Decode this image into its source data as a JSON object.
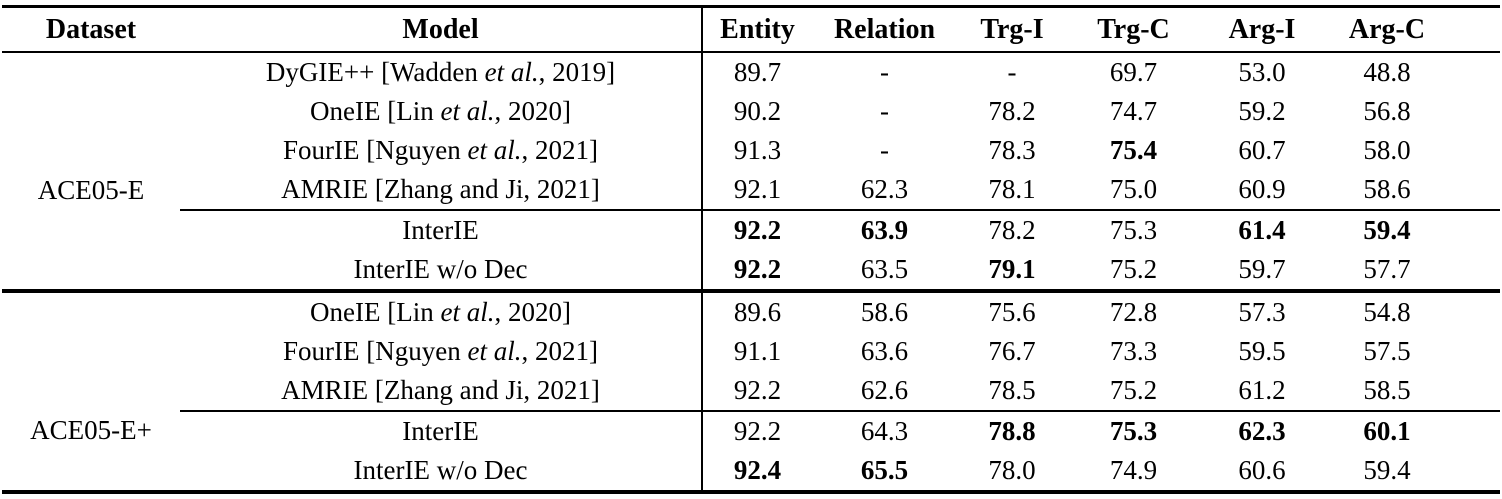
{
  "table": {
    "headers": [
      "Dataset",
      "Model",
      "Entity",
      "Relation",
      "Trg-I",
      "Trg-C",
      "Arg-I",
      "Arg-C"
    ],
    "missing_marker": "-",
    "sections": [
      {
        "dataset": "ACE05-E",
        "rows": [
          {
            "model": "DyGIE++ [Wadden *et al.*, 2019]",
            "values": [
              "89.7",
              "-",
              "-",
              "69.7",
              "53.0",
              "48.8"
            ],
            "bold": [],
            "rule_above": false
          },
          {
            "model": "OneIE [Lin *et al.*, 2020]",
            "values": [
              "90.2",
              "-",
              "78.2",
              "74.7",
              "59.2",
              "56.8"
            ],
            "bold": [],
            "rule_above": false
          },
          {
            "model": "FourIE [Nguyen *et al.*, 2021]",
            "values": [
              "91.3",
              "-",
              "78.3",
              "75.4",
              "60.7",
              "58.0"
            ],
            "bold": [
              3
            ],
            "rule_above": false
          },
          {
            "model": "AMRIE [Zhang and Ji, 2021]",
            "values": [
              "92.1",
              "62.3",
              "78.1",
              "75.0",
              "60.9",
              "58.6"
            ],
            "bold": [],
            "rule_above": false
          },
          {
            "model": "InterIE",
            "values": [
              "92.2",
              "63.9",
              "78.2",
              "75.3",
              "61.4",
              "59.4"
            ],
            "bold": [
              0,
              1,
              4,
              5
            ],
            "rule_above": true
          },
          {
            "model": "InterIE w/o Dec",
            "values": [
              "92.2",
              "63.5",
              "79.1",
              "75.2",
              "59.7",
              "57.7"
            ],
            "bold": [
              0,
              2
            ],
            "rule_above": false
          }
        ]
      },
      {
        "dataset": "ACE05-E+",
        "rows": [
          {
            "model": "OneIE [Lin *et al.*, 2020]",
            "values": [
              "89.6",
              "58.6",
              "75.6",
              "72.8",
              "57.3",
              "54.8"
            ],
            "bold": [],
            "rule_above": false
          },
          {
            "model": "FourIE [Nguyen *et al.*, 2021]",
            "values": [
              "91.1",
              "63.6",
              "76.7",
              "73.3",
              "59.5",
              "57.5"
            ],
            "bold": [],
            "rule_above": false
          },
          {
            "model": "AMRIE [Zhang and Ji, 2021]",
            "values": [
              "92.2",
              "62.6",
              "78.5",
              "75.2",
              "61.2",
              "58.5"
            ],
            "bold": [],
            "rule_above": false
          },
          {
            "model": "InterIE",
            "values": [
              "92.2",
              "64.3",
              "78.8",
              "75.3",
              "62.3",
              "60.1"
            ],
            "bold": [
              2,
              3,
              4,
              5
            ],
            "rule_above": true
          },
          {
            "model": "InterIE w/o Dec",
            "values": [
              "92.4",
              "65.5",
              "78.0",
              "74.9",
              "60.6",
              "59.4"
            ],
            "bold": [
              0,
              1
            ],
            "rule_above": false
          }
        ]
      }
    ]
  }
}
